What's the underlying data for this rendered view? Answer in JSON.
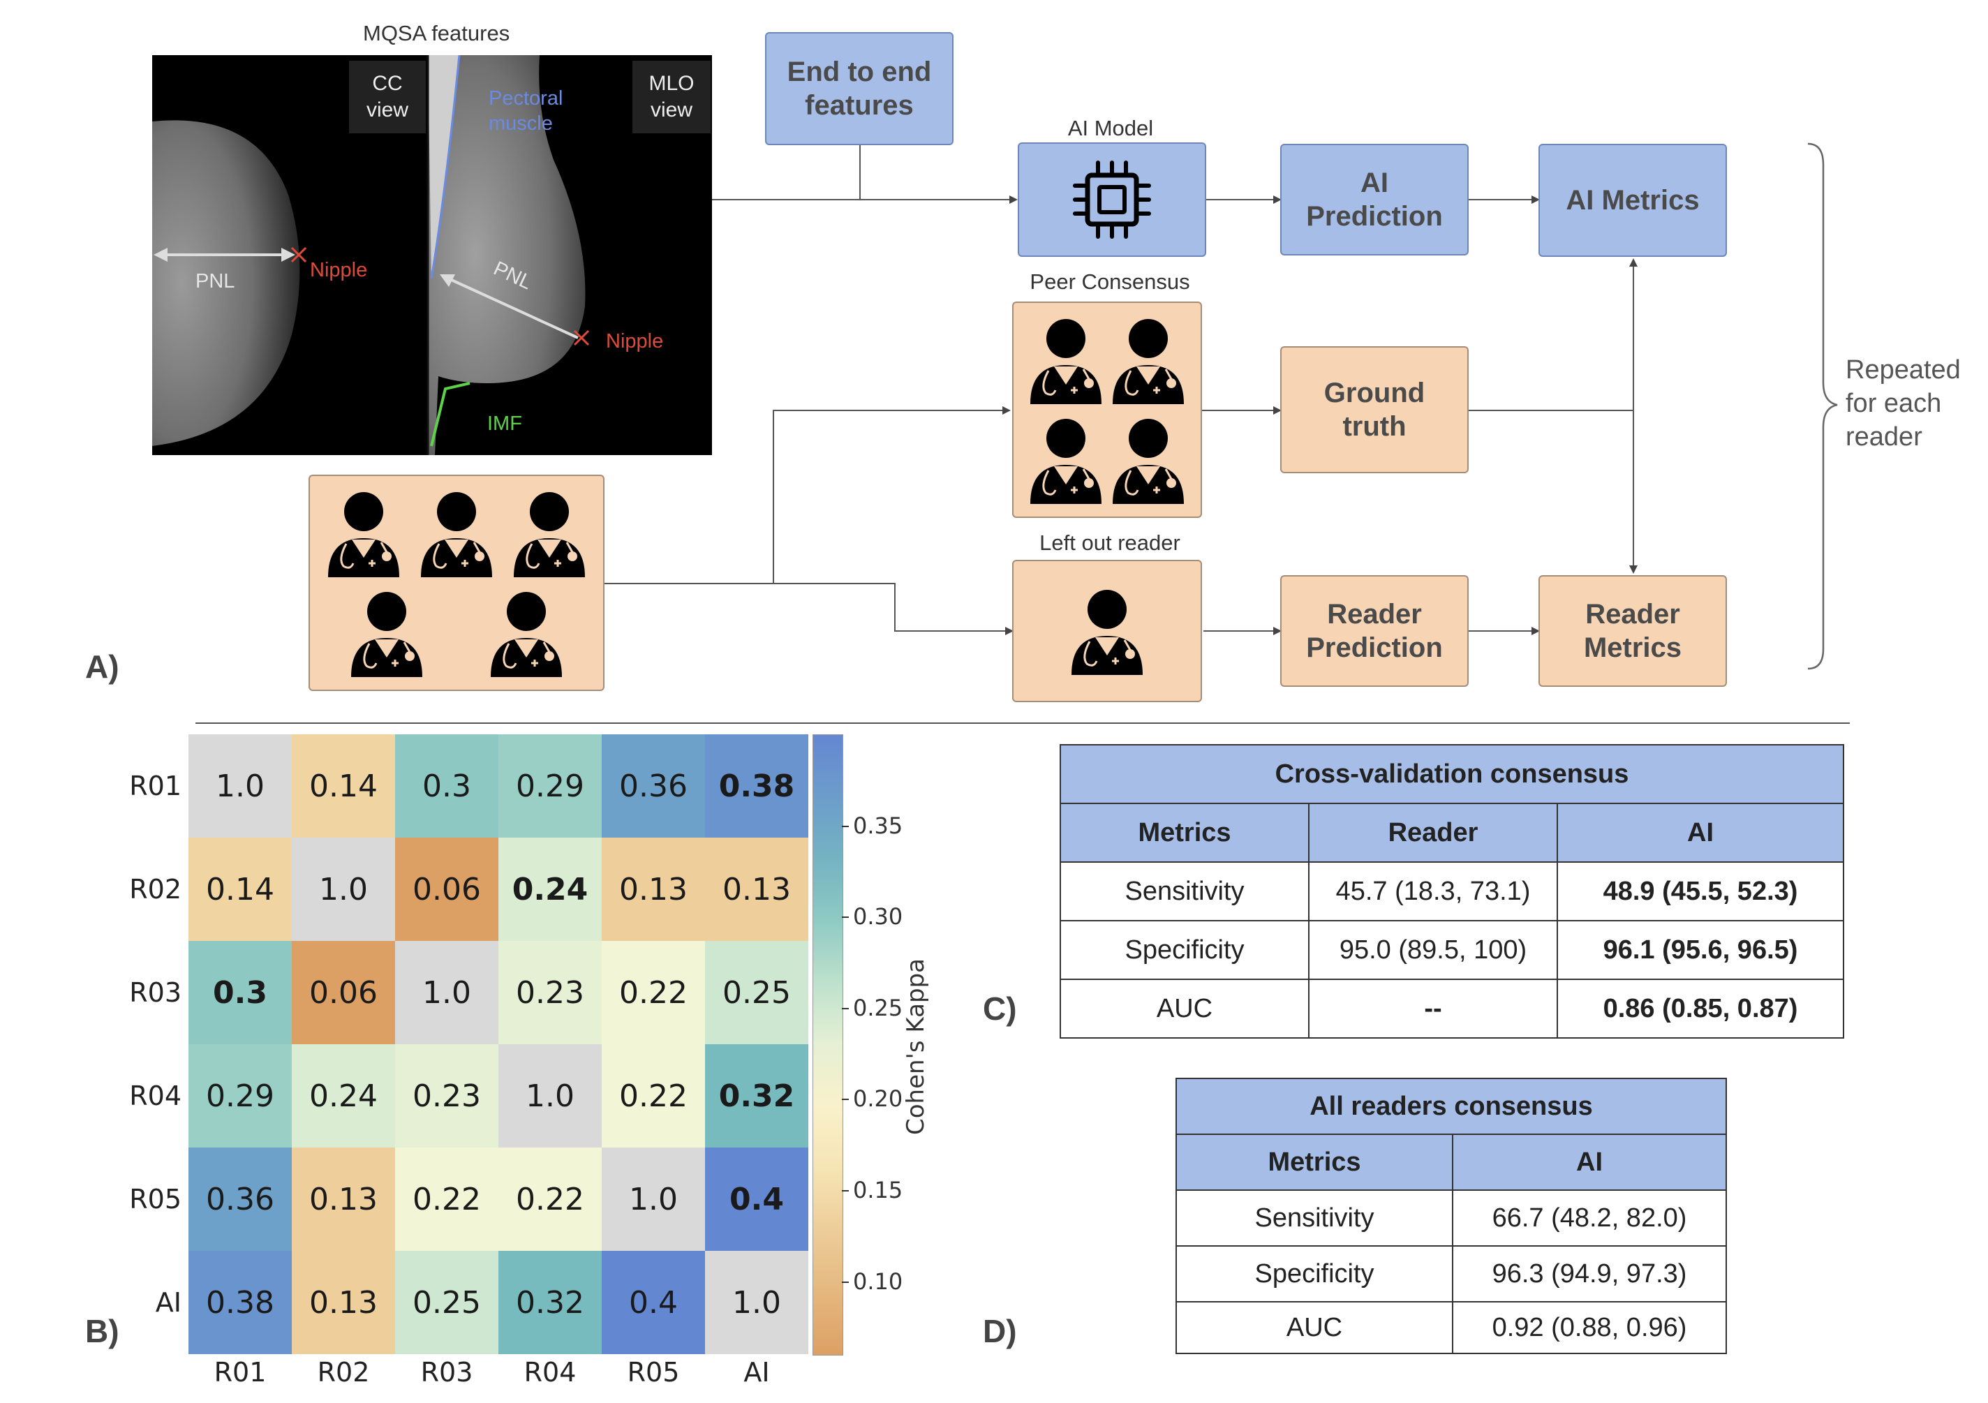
{
  "panel_a": {
    "letter": "A)",
    "image_caption": "MQSA features",
    "cc_view": "CC\nview",
    "mlo_view": "MLO\nview",
    "pectoral_muscle": "Pectoral\nmuscle",
    "pnl_cc": "PNL",
    "nipple_cc": "Nipple",
    "pnl_mlo": "PNL",
    "nipple_mlo": "Nipple",
    "imf": "IMF",
    "end_to_end": "End to end\nfeatures",
    "ai_model_caption": "AI Model",
    "ai_prediction": "AI\nPrediction",
    "ai_metrics": "AI Metrics",
    "peer_consensus_caption": "Peer Consensus",
    "ground_truth": "Ground\ntruth",
    "left_out_caption": "Left out reader",
    "reader_prediction": "Reader\nPrediction",
    "reader_metrics": "Reader\nMetrics",
    "repeated": "Repeated\nfor each\nreader",
    "colors": {
      "blue_box": "#a6bde8",
      "peach_box": "#f6d4b4",
      "nipple": "#e04a3a",
      "pectoral": "#6a8be0",
      "imf": "#5fd04a"
    },
    "icons": [
      "cpu-chip-icon",
      "doctor-icon"
    ]
  },
  "panel_b": {
    "letter": "B)",
    "chart_data": {
      "type": "heatmap",
      "rows": [
        "R01",
        "R02",
        "R03",
        "R04",
        "R05",
        "AI"
      ],
      "cols": [
        "R01",
        "R02",
        "R03",
        "R04",
        "R05",
        "AI"
      ],
      "values": [
        [
          "1.0",
          "0.14",
          "0.3",
          "0.29",
          "0.36",
          "0.38"
        ],
        [
          "0.14",
          "1.0",
          "0.06",
          "0.24",
          "0.13",
          "0.13"
        ],
        [
          "0.3",
          "0.06",
          "1.0",
          "0.23",
          "0.22",
          "0.25"
        ],
        [
          "0.29",
          "0.24",
          "0.23",
          "1.0",
          "0.22",
          "0.32"
        ],
        [
          "0.36",
          "0.13",
          "0.22",
          "0.22",
          "1.0",
          "0.4"
        ],
        [
          "0.38",
          "0.13",
          "0.25",
          "0.32",
          "0.4",
          "1.0"
        ]
      ],
      "bold": [
        [
          0,
          5
        ],
        [
          1,
          3
        ],
        [
          2,
          0
        ],
        [
          3,
          5
        ],
        [
          4,
          5
        ]
      ],
      "colorbar_label": "Cohen's Kappa",
      "colorbar_ticks": [
        "0.35",
        "0.30",
        "0.25",
        "0.20",
        "0.15",
        "0.10"
      ],
      "colorbar_range": [
        0.06,
        0.4
      ],
      "diagonal_color": "#d9d9d9"
    }
  },
  "panel_c": {
    "letter": "C)",
    "title": "Cross-validation consensus",
    "headers": [
      "Metrics",
      "Reader",
      "AI"
    ],
    "rows": [
      [
        "Sensitivity",
        "45.7 (18.3, 73.1)",
        "48.9 (45.5, 52.3)"
      ],
      [
        "Specificity",
        "95.0 (89.5, 100)",
        "96.1 (95.6, 96.5)"
      ],
      [
        "AUC",
        "--",
        "0.86 (0.85, 0.87)"
      ]
    ]
  },
  "panel_d": {
    "letter": "D)",
    "title": "All readers consensus",
    "headers": [
      "Metrics",
      "AI"
    ],
    "rows": [
      [
        "Sensitivity",
        "66.7 (48.2, 82.0)"
      ],
      [
        "Specificity",
        "96.3 (94.9, 97.3)"
      ],
      [
        "AUC",
        "0.92 (0.88, 0.96)"
      ]
    ]
  }
}
